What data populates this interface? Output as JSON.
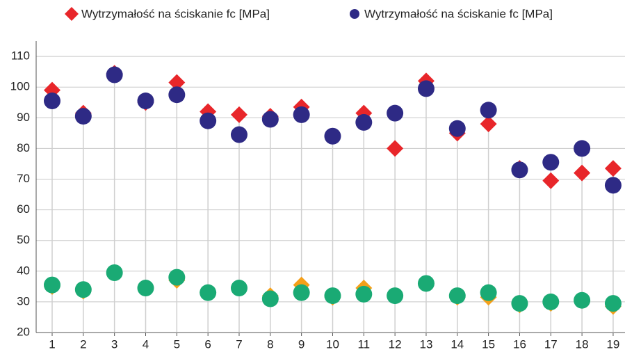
{
  "chart_data": {
    "type": "scatter",
    "categories": [
      "1",
      "2",
      "3",
      "4",
      "5",
      "6",
      "7",
      "8",
      "9",
      "10",
      "11",
      "12",
      "13",
      "14",
      "15",
      "16",
      "17",
      "18",
      "19"
    ],
    "series": [
      {
        "name": "Wytrzymałość na ściskanie fc [MPa]",
        "color": "#e8262a",
        "marker": "diamond",
        "values": [
          99,
          91.5,
          104.5,
          95,
          101.5,
          92,
          91,
          90.5,
          93.5,
          84,
          91.5,
          80,
          102,
          85,
          88,
          73.5,
          69.5,
          72,
          73.5
        ]
      },
      {
        "name": "Wytrzymałość na ściskanie fc [MPa]",
        "color": "#2e2a85",
        "marker": "circle",
        "values": [
          95.5,
          90.5,
          104,
          95.5,
          97.5,
          89,
          84.5,
          89.5,
          91,
          84,
          88.5,
          91.5,
          99.5,
          86.5,
          92.5,
          73,
          75.5,
          80,
          68
        ]
      },
      {
        "color": "#f5a01a",
        "marker": "diamond",
        "values": [
          35,
          33.5,
          39.5,
          34.5,
          37,
          33,
          34.5,
          32,
          35.5,
          31.5,
          34.5,
          32,
          36,
          31.5,
          31.5,
          29,
          29.5,
          30.5,
          28.5
        ]
      },
      {
        "color": "#1aaa74",
        "marker": "circle",
        "values": [
          35.5,
          34,
          39.5,
          34.5,
          38,
          33,
          34.5,
          31,
          33,
          32,
          32.5,
          32,
          36,
          32,
          33,
          29.5,
          30,
          30.5,
          29.5
        ]
      }
    ],
    "ylim": [
      20,
      115
    ],
    "yticks": [
      20,
      30,
      40,
      50,
      60,
      70,
      80,
      90,
      100,
      110
    ],
    "grid": true,
    "legend": "top"
  }
}
